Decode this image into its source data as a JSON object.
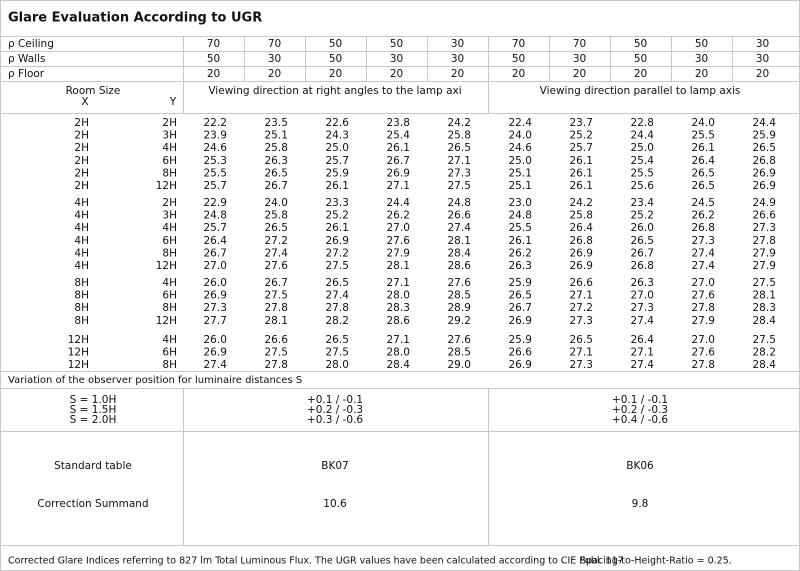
{
  "title": "Glare Evaluation According to UGR",
  "reflectance": {
    "labels": [
      "ρ Ceiling",
      "ρ Walls",
      "ρ Floor"
    ],
    "rows": [
      [
        "70",
        "70",
        "50",
        "50",
        "30",
        "70",
        "70",
        "50",
        "50",
        "30"
      ],
      [
        "50",
        "30",
        "50",
        "30",
        "30",
        "50",
        "30",
        "50",
        "30",
        "30"
      ],
      [
        "20",
        "20",
        "20",
        "20",
        "20",
        "20",
        "20",
        "20",
        "20",
        "20"
      ]
    ]
  },
  "header": {
    "room_size": "Room Size",
    "x": "X",
    "y": "Y",
    "direction_1": "Viewing direction at right angles to the lamp axi",
    "direction_2": "Viewing direction parallel to lamp axis"
  },
  "groups": [
    {
      "rows": [
        {
          "x": "2H",
          "y": "2H",
          "values": [
            "22.2",
            "23.5",
            "22.6",
            "23.8",
            "24.2",
            "22.4",
            "23.7",
            "22.8",
            "24.0",
            "24.4"
          ]
        },
        {
          "x": "2H",
          "y": "3H",
          "values": [
            "23.9",
            "25.1",
            "24.3",
            "25.4",
            "25.8",
            "24.0",
            "25.2",
            "24.4",
            "25.5",
            "25.9"
          ]
        },
        {
          "x": "2H",
          "y": "4H",
          "values": [
            "24.6",
            "25.8",
            "25.0",
            "26.1",
            "26.5",
            "24.6",
            "25.7",
            "25.0",
            "26.1",
            "26.5"
          ]
        },
        {
          "x": "2H",
          "y": "6H",
          "values": [
            "25.3",
            "26.3",
            "25.7",
            "26.7",
            "27.1",
            "25.0",
            "26.1",
            "25.4",
            "26.4",
            "26.8"
          ]
        },
        {
          "x": "2H",
          "y": "8H",
          "values": [
            "25.5",
            "26.5",
            "25.9",
            "26.9",
            "27.3",
            "25.1",
            "26.1",
            "25.5",
            "26.5",
            "26.9"
          ]
        },
        {
          "x": "2H",
          "y": "12H",
          "values": [
            "25.7",
            "26.7",
            "26.1",
            "27.1",
            "27.5",
            "25.1",
            "26.1",
            "25.6",
            "26.5",
            "26.9"
          ]
        }
      ]
    },
    {
      "rows": [
        {
          "x": "4H",
          "y": "2H",
          "values": [
            "22.9",
            "24.0",
            "23.3",
            "24.4",
            "24.8",
            "23.0",
            "24.2",
            "23.4",
            "24.5",
            "24.9"
          ]
        },
        {
          "x": "4H",
          "y": "3H",
          "values": [
            "24.8",
            "25.8",
            "25.2",
            "26.2",
            "26.6",
            "24.8",
            "25.8",
            "25.2",
            "26.2",
            "26.6"
          ]
        },
        {
          "x": "4H",
          "y": "4H",
          "values": [
            "25.7",
            "26.5",
            "26.1",
            "27.0",
            "27.4",
            "25.5",
            "26.4",
            "26.0",
            "26.8",
            "27.3"
          ]
        },
        {
          "x": "4H",
          "y": "6H",
          "values": [
            "26.4",
            "27.2",
            "26.9",
            "27.6",
            "28.1",
            "26.1",
            "26.8",
            "26.5",
            "27.3",
            "27.8"
          ]
        },
        {
          "x": "4H",
          "y": "8H",
          "values": [
            "26.7",
            "27.4",
            "27.2",
            "27.9",
            "28.4",
            "26.2",
            "26.9",
            "26.7",
            "27.4",
            "27.9"
          ]
        },
        {
          "x": "4H",
          "y": "12H",
          "values": [
            "27.0",
            "27.6",
            "27.5",
            "28.1",
            "28.6",
            "26.3",
            "26.9",
            "26.8",
            "27.4",
            "27.9"
          ]
        }
      ]
    },
    {
      "rows": [
        {
          "x": "8H",
          "y": "4H",
          "values": [
            "26.0",
            "26.7",
            "26.5",
            "27.1",
            "27.6",
            "25.9",
            "26.6",
            "26.3",
            "27.0",
            "27.5"
          ]
        },
        {
          "x": "8H",
          "y": "6H",
          "values": [
            "26.9",
            "27.5",
            "27.4",
            "28.0",
            "28.5",
            "26.5",
            "27.1",
            "27.0",
            "27.6",
            "28.1"
          ]
        },
        {
          "x": "8H",
          "y": "8H",
          "values": [
            "27.3",
            "27.8",
            "27.8",
            "28.3",
            "28.9",
            "26.7",
            "27.2",
            "27.3",
            "27.8",
            "28.3"
          ]
        },
        {
          "x": "8H",
          "y": "12H",
          "values": [
            "27.7",
            "28.1",
            "28.2",
            "28.6",
            "29.2",
            "26.9",
            "27.3",
            "27.4",
            "27.9",
            "28.4"
          ]
        }
      ]
    },
    {
      "rows": [
        {
          "x": "12H",
          "y": "4H",
          "values": [
            "26.0",
            "26.6",
            "26.5",
            "27.1",
            "27.6",
            "25.9",
            "26.5",
            "26.4",
            "27.0",
            "27.5"
          ]
        },
        {
          "x": "12H",
          "y": "6H",
          "values": [
            "26.9",
            "27.5",
            "27.5",
            "28.0",
            "28.5",
            "26.6",
            "27.1",
            "27.1",
            "27.6",
            "28.2"
          ]
        },
        {
          "x": "12H",
          "y": "8H",
          "values": [
            "27.4",
            "27.8",
            "28.0",
            "28.4",
            "29.0",
            "26.9",
            "27.3",
            "27.4",
            "27.8",
            "28.4"
          ]
        }
      ]
    }
  ],
  "variation": {
    "label": "Variation of the observer position for luminaire distances S",
    "s_labels": [
      "S = 1.0H",
      "S = 1.5H",
      "S = 2.0H"
    ],
    "left": [
      "+0.1 / -0.1",
      "+0.2 / -0.3",
      "+0.3 / -0.6"
    ],
    "right": [
      "+0.1 / -0.1",
      "+0.2 / -0.3",
      "+0.4 / -0.6"
    ]
  },
  "standard_table": {
    "label": "Standard table",
    "left": "BK07",
    "right": "BK06"
  },
  "correction": {
    "label": "Correction Summand",
    "left": "10.6",
    "right": "9.8"
  },
  "footnote": [
    "Corrected Glare Indices referring to 827 lm Total Luminous Flux. The UGR values have been calculated according to CIE Publ. 117",
    "Spacing-to-Height-Ratio = 0.25."
  ]
}
